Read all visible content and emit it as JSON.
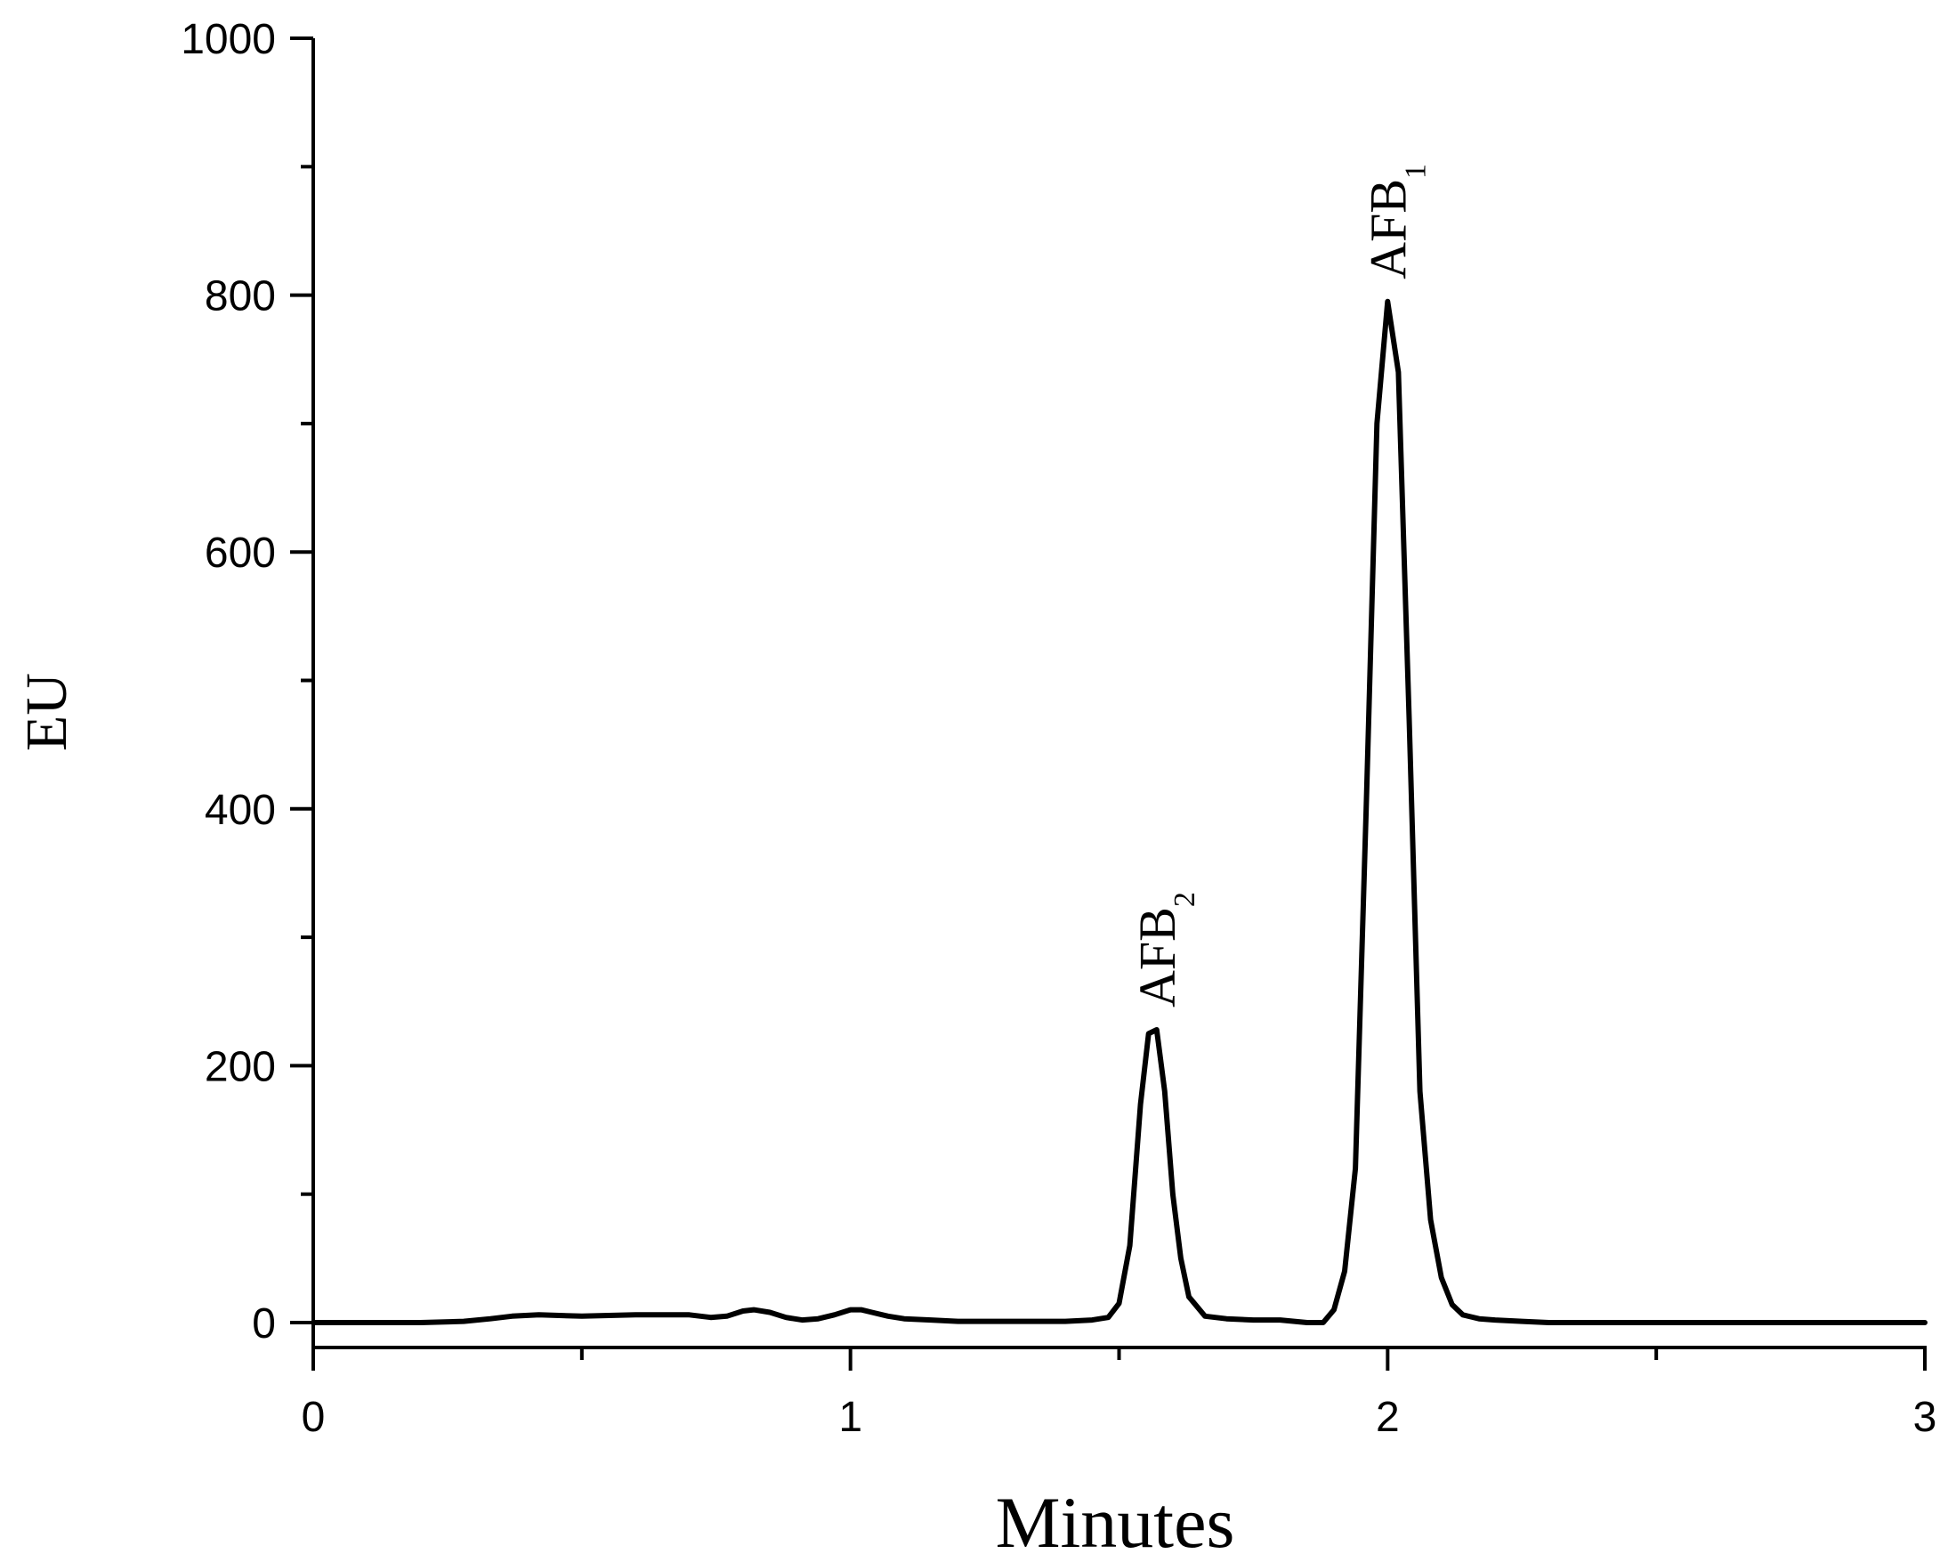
{
  "chart_data": {
    "type": "line",
    "title": "",
    "xlabel": "Minutes",
    "ylabel": "EU",
    "xlim": [
      0,
      3
    ],
    "ylim": [
      0,
      1000
    ],
    "x_ticks": [
      0,
      1,
      2,
      3
    ],
    "x_tick_labels": [
      "0",
      "1",
      "2",
      "3"
    ],
    "x_minor_ticks": [
      0.5,
      1.5,
      2.5
    ],
    "y_ticks": [
      0,
      200,
      400,
      600,
      800,
      1000
    ],
    "y_tick_labels": [
      "0",
      "200",
      "400",
      "600",
      "800",
      "1000"
    ],
    "y_minor_ticks": [
      100,
      300,
      500,
      700,
      900
    ],
    "grid": false,
    "legend": "none",
    "line_color": "#000000",
    "series": [
      {
        "x": [
          0,
          0.1,
          0.2,
          0.28,
          0.33,
          0.37,
          0.42,
          0.5,
          0.6,
          0.7,
          0.74,
          0.77,
          0.8,
          0.82,
          0.85,
          0.88,
          0.91,
          0.94,
          0.97,
          1.0,
          1.02,
          1.04,
          1.07,
          1.1,
          1.15,
          1.2,
          1.25,
          1.3,
          1.35,
          1.4,
          1.45,
          1.48,
          1.5,
          1.52,
          1.54,
          1.555,
          1.57,
          1.585,
          1.6,
          1.615,
          1.63,
          1.66,
          1.7,
          1.75,
          1.8,
          1.85,
          1.88,
          1.9,
          1.92,
          1.94,
          1.96,
          1.98,
          2.0,
          2.02,
          2.04,
          2.06,
          2.08,
          2.1,
          2.12,
          2.14,
          2.17,
          2.2,
          2.25,
          2.3,
          2.5,
          2.75,
          3.0
        ],
        "y": [
          0,
          0,
          0,
          1,
          3,
          5,
          6,
          5,
          6,
          6,
          4,
          5,
          9,
          10,
          8,
          4,
          2,
          3,
          6,
          10,
          10,
          8,
          5,
          3,
          2,
          1,
          1,
          1,
          1,
          1,
          2,
          4,
          15,
          60,
          170,
          225,
          228,
          180,
          100,
          50,
          20,
          5,
          3,
          2,
          2,
          0,
          0,
          10,
          40,
          120,
          400,
          700,
          795,
          740,
          470,
          180,
          80,
          35,
          14,
          6,
          3,
          2,
          1,
          0,
          0,
          0,
          0
        ]
      }
    ],
    "annotations": [
      {
        "main": "AFB",
        "sub": "2",
        "x": 1.57,
        "y": 228
      },
      {
        "main": "AFB",
        "sub": "1",
        "x": 2.0,
        "y": 795
      }
    ]
  }
}
